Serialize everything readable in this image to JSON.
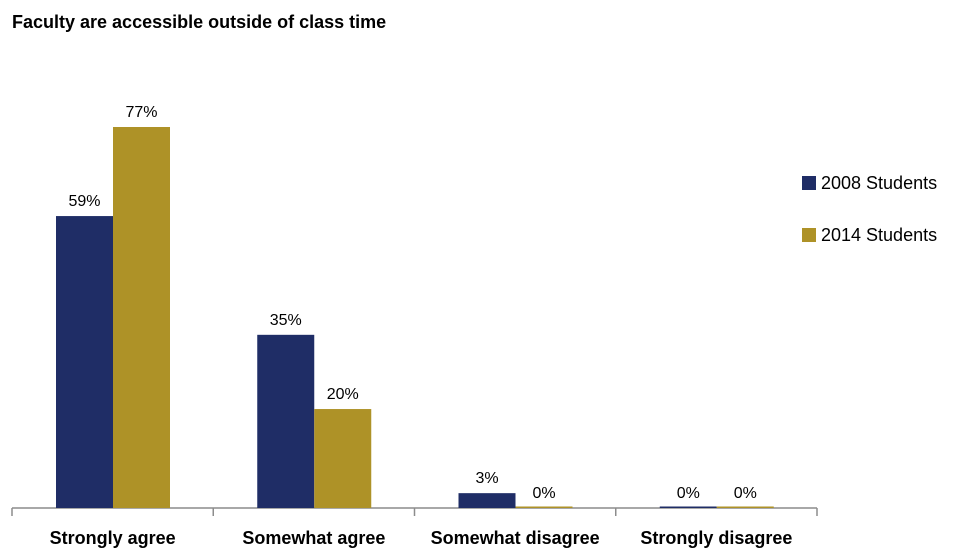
{
  "chart_data": {
    "type": "bar",
    "title": "Faculty are accessible outside of class time",
    "categories": [
      "Strongly agree",
      "Somewhat agree",
      "Somewhat disagree",
      "Strongly disagree"
    ],
    "series": [
      {
        "name": "2008 Students",
        "values": [
          59,
          35,
          3,
          0
        ],
        "color": "#1f2d66"
      },
      {
        "name": "2014 Students",
        "values": [
          77,
          20,
          0,
          0
        ],
        "color": "#ae9227"
      }
    ],
    "value_suffix": "%",
    "ylim": [
      0,
      100
    ],
    "grid": false,
    "legend_position": "right"
  }
}
